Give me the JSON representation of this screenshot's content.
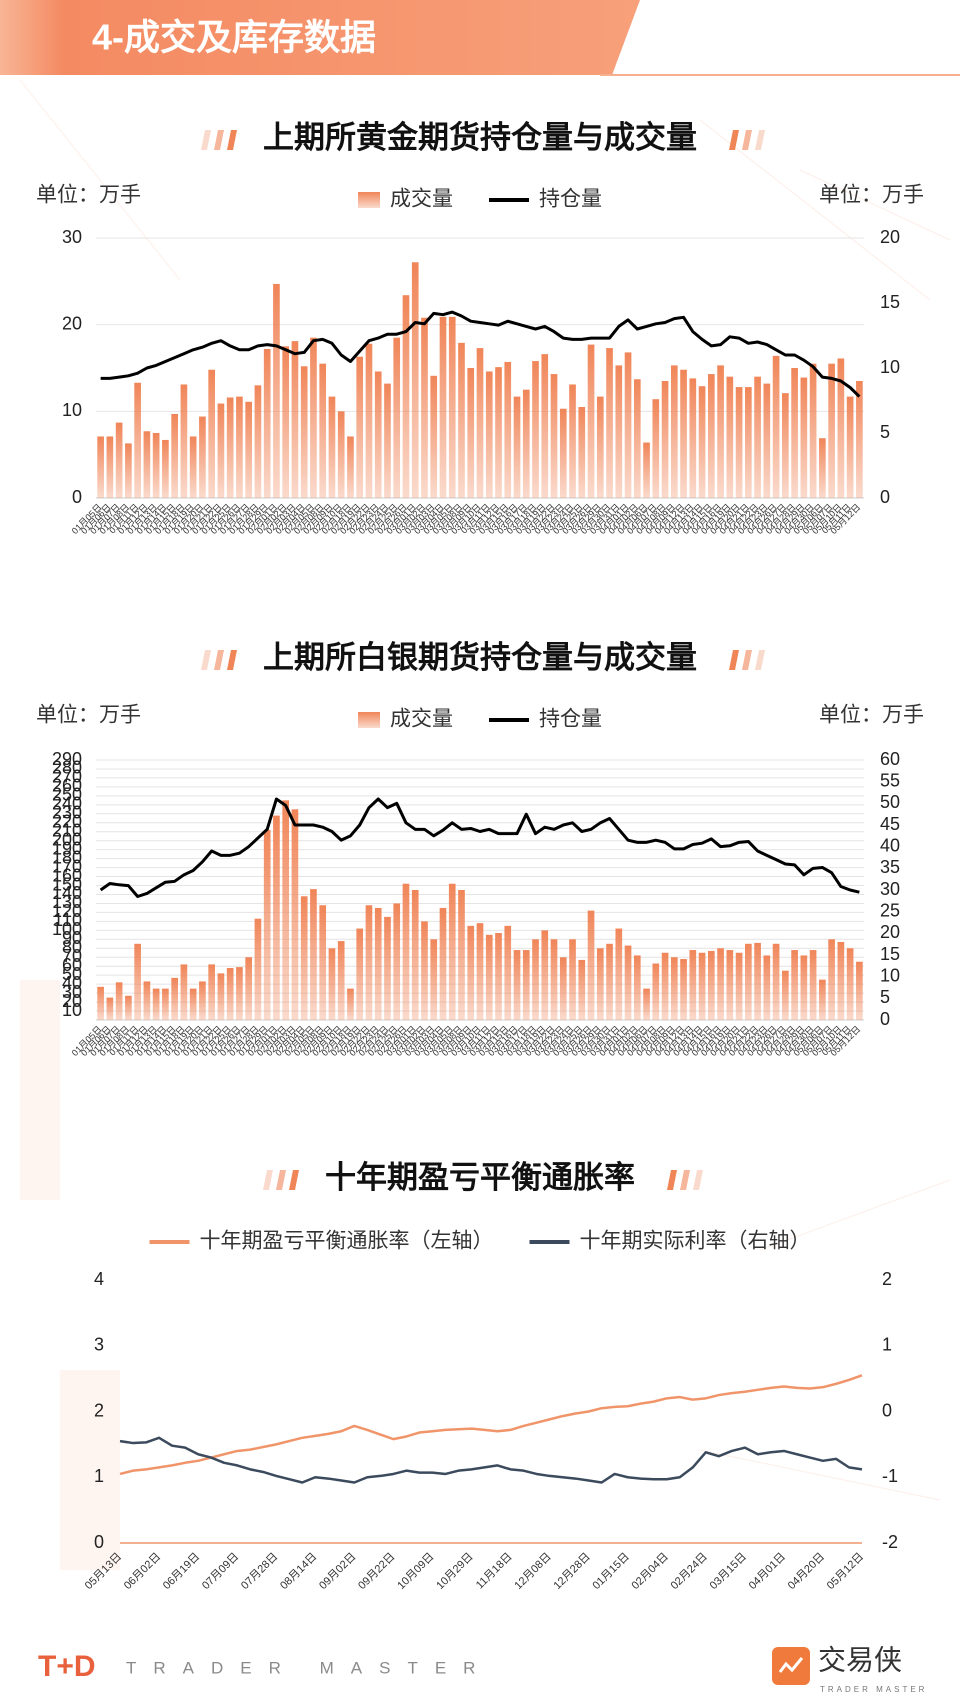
{
  "header": {
    "title": "4-成交及库存数据"
  },
  "footer": {
    "brand": "T+D",
    "tagline": "TRADER MASTER",
    "logo_name": "交易侠",
    "logo_sub": "TRADER MASTER"
  },
  "chart_data": [
    {
      "type": "combo",
      "title": "上期所黄金期货持仓量与成交量",
      "y_label": "单位：万手",
      "y2_label": "单位：万手",
      "grid": true,
      "ylim": [
        0,
        30
      ],
      "yticks": [
        0,
        10,
        20,
        30
      ],
      "y2lim": [
        0,
        20
      ],
      "y2ticks": [
        0,
        5,
        10,
        15,
        20
      ],
      "categories": [
        "01月05日",
        "01月06日",
        "01月07日",
        "01月08日",
        "01月11日",
        "01月12日",
        "01月13日",
        "01月14日",
        "01月15日",
        "01月18日",
        "01月19日",
        "01月20日",
        "01月21日",
        "01月22日",
        "01月25日",
        "01月26日",
        "01月27日",
        "01月28日",
        "01月29日",
        "02月01日",
        "02月02日",
        "02月03日",
        "02月04日",
        "02月05日",
        "02月08日",
        "02月09日",
        "02月10日",
        "02月18日",
        "02月19日",
        "02月22日",
        "02月23日",
        "02月24日",
        "02月25日",
        "02月26日",
        "03月01日",
        "03月02日",
        "03月03日",
        "03月04日",
        "03月05日",
        "03月08日",
        "03月09日",
        "03月10日",
        "03月11日",
        "03月12日",
        "03月15日",
        "03月16日",
        "03月17日",
        "03月18日",
        "03月19日",
        "03月22日",
        "03月23日",
        "03月24日",
        "03月25日",
        "03月26日",
        "03月29日",
        "03月30日",
        "03月31日",
        "04月01日",
        "04月02日",
        "04月06日",
        "04月07日",
        "04月08日",
        "04月09日",
        "04月12日",
        "04月13日",
        "04月14日",
        "04月15日",
        "04月16日",
        "04月19日",
        "04月20日",
        "04月21日",
        "04月22日",
        "04月23日",
        "04月26日",
        "04月27日",
        "04月28日",
        "04月29日",
        "04月30日",
        "05月06日",
        "05月07日",
        "05月10日",
        "05月11日",
        "05月12日"
      ],
      "series": [
        {
          "name": "成交量",
          "type": "bar",
          "color": "#f08558",
          "values": [
            7.1,
            7.1,
            8.7,
            6.3,
            13.3,
            7.7,
            7.5,
            6.7,
            9.7,
            13.1,
            7.1,
            9.4,
            14.8,
            10.9,
            11.6,
            11.7,
            11.1,
            13.0,
            17.2,
            24.7,
            17.5,
            18.1,
            15.2,
            18.5,
            15.5,
            11.7,
            10.0,
            7.1,
            16.3,
            17.8,
            14.6,
            13.2,
            18.5,
            23.4,
            27.2,
            20.8,
            14.1,
            20.9,
            20.9,
            17.9,
            15.0,
            17.3,
            14.6,
            15.1,
            15.7,
            11.7,
            12.5,
            15.8,
            16.6,
            14.3,
            10.3,
            13.1,
            10.5,
            17.7,
            11.7,
            17.3,
            15.3,
            16.8,
            13.7,
            6.4,
            11.4,
            13.5,
            15.3,
            14.8,
            13.8,
            12.9,
            14.3,
            15.3,
            14.0,
            12.8,
            12.8,
            14.0,
            13.2,
            16.4,
            12.1,
            15.0,
            13.9,
            15.5,
            6.9,
            15.5,
            16.1,
            11.7,
            13.5
          ]
        },
        {
          "name": "持仓量",
          "type": "line",
          "axis": "y2",
          "color": "#000000",
          "values": [
            9.2,
            9.2,
            9.3,
            9.4,
            9.6,
            10.0,
            10.2,
            10.5,
            10.8,
            11.1,
            11.4,
            11.6,
            11.9,
            12.1,
            11.7,
            11.4,
            11.4,
            11.7,
            11.8,
            11.7,
            11.4,
            11.1,
            11.2,
            12.1,
            12.2,
            11.9,
            11.0,
            10.5,
            11.3,
            12.1,
            12.3,
            12.6,
            12.6,
            12.8,
            13.5,
            13.4,
            14.2,
            14.1,
            14.3,
            14.0,
            13.6,
            13.5,
            13.4,
            13.3,
            13.6,
            13.4,
            13.2,
            13.0,
            13.2,
            12.8,
            12.3,
            12.2,
            12.2,
            12.3,
            12.3,
            12.3,
            13.2,
            13.7,
            13.0,
            13.2,
            13.4,
            13.5,
            13.8,
            13.9,
            12.8,
            12.2,
            11.7,
            11.8,
            12.4,
            12.3,
            11.9,
            12.0,
            11.8,
            11.4,
            11.0,
            11.0,
            10.6,
            10.1,
            9.3,
            9.2,
            9.0,
            8.5,
            7.8
          ]
        }
      ]
    },
    {
      "type": "combo",
      "title": "上期所白银期货持仓量与成交量",
      "y_label": "单位：万手",
      "y2_label": "单位：万手",
      "grid": true,
      "ylim": [
        0,
        290
      ],
      "yticks": [
        10,
        20,
        30,
        40,
        50,
        60,
        70,
        80,
        90,
        100,
        110,
        120,
        130,
        140,
        150,
        160,
        170,
        180,
        190,
        200,
        210,
        220,
        230,
        240,
        250,
        260,
        270,
        280,
        290
      ],
      "y2lim": [
        0,
        60
      ],
      "y2ticks": [
        0,
        5,
        10,
        15,
        20,
        25,
        30,
        35,
        40,
        45,
        50,
        55,
        60
      ],
      "categories": [
        "01月05日",
        "01月06日",
        "01月07日",
        "01月08日",
        "01月11日",
        "01月12日",
        "01月13日",
        "01月14日",
        "01月15日",
        "01月18日",
        "01月19日",
        "01月20日",
        "01月21日",
        "01月22日",
        "01月25日",
        "01月26日",
        "01月27日",
        "01月28日",
        "01月29日",
        "02月01日",
        "02月02日",
        "02月03日",
        "02月04日",
        "02月05日",
        "02月08日",
        "02月09日",
        "02月10日",
        "02月18日",
        "02月19日",
        "02月22日",
        "02月23日",
        "02月24日",
        "02月25日",
        "02月26日",
        "03月01日",
        "03月02日",
        "03月03日",
        "03月04日",
        "03月05日",
        "03月08日",
        "03月09日",
        "03月10日",
        "03月11日",
        "03月12日",
        "03月15日",
        "03月16日",
        "03月17日",
        "03月18日",
        "03月19日",
        "03月22日",
        "03月23日",
        "03月24日",
        "03月25日",
        "03月26日",
        "03月29日",
        "03月30日",
        "03月31日",
        "04月01日",
        "04月02日",
        "04月06日",
        "04月07日",
        "04月08日",
        "04月09日",
        "04月12日",
        "04月13日",
        "04月14日",
        "04月15日",
        "04月16日",
        "04月19日",
        "04月20日",
        "04月21日",
        "04月22日",
        "04月23日",
        "04月26日",
        "04月27日",
        "04月28日",
        "04月29日",
        "04月30日",
        "05月06日",
        "05月07日",
        "05月10日",
        "05月11日",
        "05月12日"
      ],
      "series": [
        {
          "name": "成交量",
          "type": "bar",
          "color": "#f08558",
          "values": [
            37,
            25,
            42,
            27,
            85,
            43,
            35,
            35,
            47,
            62,
            35,
            43,
            62,
            52,
            58,
            59,
            70,
            113,
            212,
            228,
            245,
            235,
            138,
            146,
            128,
            80,
            88,
            35,
            102,
            128,
            125,
            115,
            130,
            152,
            145,
            110,
            90,
            125,
            152,
            145,
            105,
            108,
            95,
            97,
            105,
            78,
            78,
            90,
            100,
            90,
            70,
            90,
            67,
            122,
            80,
            85,
            102,
            83,
            72,
            35,
            63,
            75,
            70,
            68,
            78,
            75,
            77,
            80,
            78,
            75,
            85,
            86,
            72,
            85,
            55,
            78,
            72,
            78,
            45,
            90,
            87,
            80,
            65
          ]
        },
        {
          "name": "持仓量",
          "type": "line",
          "axis": "y2",
          "color": "#000000",
          "values": [
            30,
            31.5,
            31.2,
            31,
            28.5,
            29.2,
            30.5,
            31.8,
            32,
            33.5,
            34.5,
            36.5,
            39,
            38,
            38,
            38.5,
            40,
            42,
            44,
            51,
            49.5,
            45,
            45,
            45,
            44.5,
            43.5,
            41.5,
            42.5,
            45,
            49,
            51,
            49,
            50,
            45.5,
            44,
            44,
            42.5,
            43.8,
            45.5,
            44,
            44.2,
            43.5,
            44,
            43,
            43,
            43,
            47.5,
            43,
            44.5,
            44,
            45,
            45.5,
            43.5,
            44,
            45.5,
            46.5,
            44,
            41.5,
            41,
            41,
            41.5,
            41,
            39.5,
            39.5,
            40.5,
            40.8,
            41.8,
            40,
            40.2,
            41,
            41.2,
            39,
            38,
            37,
            36,
            35.8,
            33.5,
            35,
            35.2,
            34,
            30.8,
            30,
            29.5
          ]
        }
      ]
    },
    {
      "type": "line",
      "title": "十年期盈亏平衡通胀率",
      "grid": false,
      "ylim": [
        0,
        4
      ],
      "yticks": [
        0,
        1,
        2,
        3,
        4
      ],
      "y2lim": [
        -2,
        2
      ],
      "y2ticks": [
        -2,
        -1,
        0,
        1,
        2
      ],
      "categories": [
        "05月13日",
        null,
        null,
        "06月02日",
        null,
        null,
        "06月19日",
        null,
        null,
        "07月09日",
        null,
        null,
        "07月28日",
        null,
        null,
        "08月14日",
        null,
        null,
        "09月02日",
        null,
        null,
        "09月22日",
        null,
        null,
        "10月09日",
        null,
        null,
        "10月29日",
        null,
        null,
        "11月18日",
        null,
        null,
        "12月08日",
        null,
        null,
        "12月28日",
        null,
        null,
        "01月15日",
        null,
        null,
        "02月04日",
        null,
        null,
        "02月24日",
        null,
        null,
        "03月15日",
        null,
        null,
        "04月01日",
        null,
        null,
        "04月20日",
        null,
        null,
        "05月12日"
      ],
      "series": [
        {
          "name": "十年期盈亏平衡通胀率（左轴）",
          "type": "line",
          "color": "#f0956a",
          "values": [
            1.05,
            1.1,
            1.12,
            1.15,
            1.18,
            1.22,
            1.25,
            1.3,
            1.35,
            1.4,
            1.42,
            1.46,
            1.5,
            1.55,
            1.6,
            1.63,
            1.66,
            1.7,
            1.78,
            1.72,
            1.65,
            1.58,
            1.62,
            1.68,
            1.7,
            1.72,
            1.73,
            1.74,
            1.72,
            1.7,
            1.72,
            1.78,
            1.83,
            1.88,
            1.93,
            1.97,
            2.0,
            2.05,
            2.07,
            2.08,
            2.12,
            2.15,
            2.2,
            2.22,
            2.18,
            2.2,
            2.25,
            2.28,
            2.3,
            2.33,
            2.36,
            2.38,
            2.36,
            2.35,
            2.37,
            2.42,
            2.48,
            2.55
          ]
        },
        {
          "name": "十年期实际利率（右轴）",
          "type": "line",
          "axis": "y2",
          "color": "#3b4a5c",
          "values": [
            -0.45,
            -0.48,
            -0.47,
            -0.4,
            -0.52,
            -0.55,
            -0.65,
            -0.7,
            -0.78,
            -0.82,
            -0.88,
            -0.92,
            -0.98,
            -1.03,
            -1.08,
            -1.0,
            -1.02,
            -1.05,
            -1.08,
            -1.0,
            -0.98,
            -0.95,
            -0.9,
            -0.93,
            -0.93,
            -0.95,
            -0.9,
            -0.88,
            -0.85,
            -0.82,
            -0.88,
            -0.9,
            -0.95,
            -0.98,
            -1.0,
            -1.02,
            -1.05,
            -1.08,
            -0.95,
            -1.0,
            -1.02,
            -1.03,
            -1.03,
            -1.0,
            -0.85,
            -0.62,
            -0.68,
            -0.6,
            -0.55,
            -0.65,
            -0.62,
            -0.6,
            -0.65,
            -0.7,
            -0.75,
            -0.72,
            -0.85,
            -0.88
          ]
        }
      ]
    }
  ]
}
